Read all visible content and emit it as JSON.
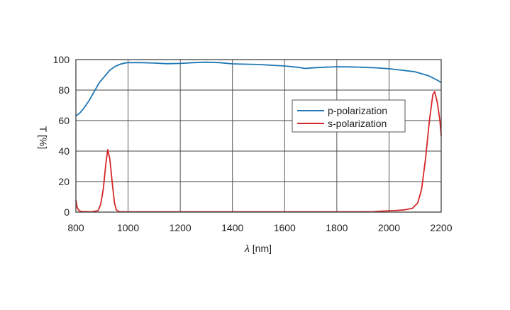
{
  "chart_data": {
    "type": "line",
    "xlabel_symbol": "λ",
    "xlabel_unit": " [nm]",
    "ylabel": "T [%]",
    "xlim": [
      800,
      2200
    ],
    "ylim": [
      0,
      100
    ],
    "x_ticks": [
      800,
      1000,
      1200,
      1400,
      1600,
      1800,
      2000,
      2200
    ],
    "y_ticks": [
      0,
      20,
      40,
      60,
      80,
      100
    ],
    "grid": true,
    "legend_position": "right",
    "series": [
      {
        "name": "p-polarization",
        "color": "#1f77b4",
        "points": [
          [
            800,
            63
          ],
          [
            815,
            65
          ],
          [
            830,
            68
          ],
          [
            850,
            73
          ],
          [
            870,
            79
          ],
          [
            890,
            85
          ],
          [
            910,
            89
          ],
          [
            930,
            93
          ],
          [
            950,
            95.5
          ],
          [
            970,
            97
          ],
          [
            990,
            97.8
          ],
          [
            1000,
            98
          ],
          [
            1050,
            98
          ],
          [
            1100,
            97.7
          ],
          [
            1150,
            97.3
          ],
          [
            1200,
            97.5
          ],
          [
            1250,
            98
          ],
          [
            1300,
            98.3
          ],
          [
            1350,
            98
          ],
          [
            1400,
            97.2
          ],
          [
            1450,
            97
          ],
          [
            1500,
            96.8
          ],
          [
            1550,
            96.3
          ],
          [
            1600,
            95.8
          ],
          [
            1650,
            95
          ],
          [
            1680,
            94.2
          ],
          [
            1700,
            94.5
          ],
          [
            1750,
            95
          ],
          [
            1800,
            95.3
          ],
          [
            1850,
            95.2
          ],
          [
            1900,
            95
          ],
          [
            1950,
            94.6
          ],
          [
            2000,
            94
          ],
          [
            2050,
            93
          ],
          [
            2100,
            92
          ],
          [
            2150,
            89.5
          ],
          [
            2180,
            87
          ],
          [
            2200,
            85
          ]
        ]
      },
      {
        "name": "s-polarization",
        "color": "#d62728",
        "points": [
          [
            800,
            8
          ],
          [
            805,
            3
          ],
          [
            812,
            1
          ],
          [
            820,
            0.4
          ],
          [
            860,
            0.2
          ],
          [
            885,
            1
          ],
          [
            895,
            5
          ],
          [
            905,
            15
          ],
          [
            915,
            32
          ],
          [
            922,
            41
          ],
          [
            930,
            35
          ],
          [
            940,
            18
          ],
          [
            948,
            6
          ],
          [
            955,
            1.5
          ],
          [
            965,
            0.3
          ],
          [
            1000,
            0.2
          ],
          [
            1200,
            0.2
          ],
          [
            1400,
            0.2
          ],
          [
            1600,
            0.2
          ],
          [
            1800,
            0.2
          ],
          [
            1940,
            0.3
          ],
          [
            1980,
            0.7
          ],
          [
            2020,
            1
          ],
          [
            2060,
            1.5
          ],
          [
            2090,
            2.5
          ],
          [
            2110,
            6
          ],
          [
            2125,
            15
          ],
          [
            2140,
            35
          ],
          [
            2155,
            60
          ],
          [
            2168,
            77
          ],
          [
            2175,
            79
          ],
          [
            2185,
            72
          ],
          [
            2195,
            60
          ],
          [
            2200,
            50
          ]
        ]
      }
    ]
  }
}
